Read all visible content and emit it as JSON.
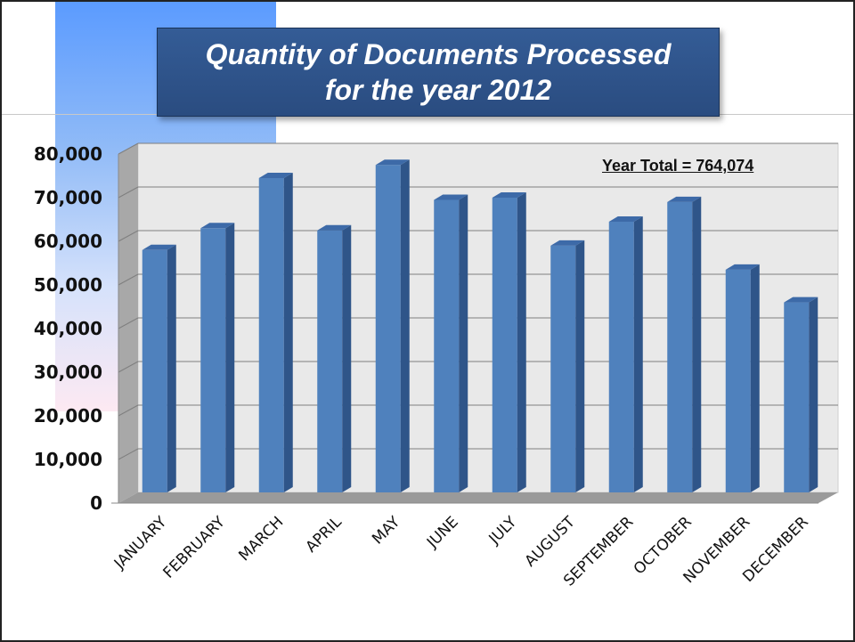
{
  "chart_data": {
    "type": "bar",
    "title": "Quantity of Documents Processed for the year 2012",
    "title_lines": [
      "Quantity of Documents Processed",
      "for the year 2012"
    ],
    "annotation": "Year Total = 764,074",
    "categories": [
      "JANUARY",
      "FEBRUARY",
      "MARCH",
      "APRIL",
      "MAY",
      "JUNE",
      "JULY",
      "AUGUST",
      "SEPTEMBER",
      "OCTOBER",
      "NOVEMBER",
      "DECEMBER"
    ],
    "values": [
      58000,
      63000,
      74500,
      62500,
      77500,
      69500,
      70000,
      59000,
      64500,
      69000,
      53500,
      46000
    ],
    "yticks": [
      "0",
      "10,000",
      "20,000",
      "30,000",
      "40,000",
      "50,000",
      "60,000",
      "70,000",
      "80,000"
    ],
    "ylim": [
      0,
      80000
    ],
    "grid": true,
    "style": "3d-column",
    "bar_color": "#4f81bd",
    "legend": "none"
  }
}
